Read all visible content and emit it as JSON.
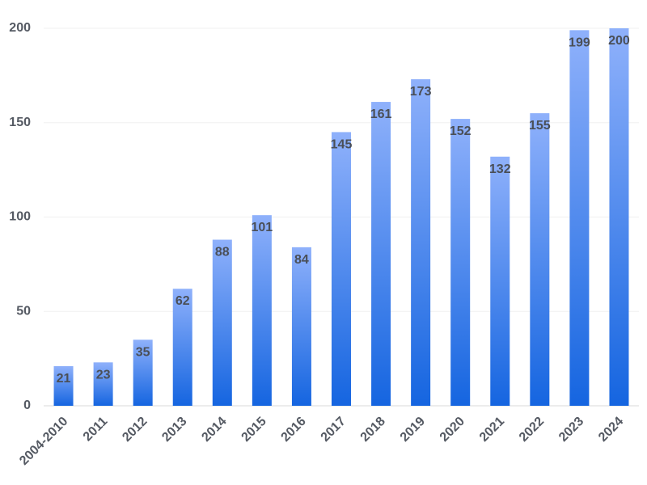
{
  "chart_data": {
    "type": "bar",
    "categories": [
      "2004-2010",
      "2011",
      "2012",
      "2013",
      "2014",
      "2015",
      "2016",
      "2017",
      "2018",
      "2019",
      "2020",
      "2021",
      "2022",
      "2023",
      "2024"
    ],
    "values": [
      21,
      23,
      35,
      62,
      88,
      101,
      84,
      145,
      161,
      173,
      152,
      132,
      155,
      199,
      200
    ],
    "title": "",
    "xlabel": "",
    "ylabel": "",
    "ylim": [
      0,
      200
    ],
    "yticks": [
      0,
      50,
      100,
      150,
      200
    ],
    "grid": true,
    "data_labels": true,
    "colors": {
      "bar_top": "#8fb1fb",
      "bar_bottom": "#1565e0",
      "label": "#4a4f57",
      "tick": "#555a63"
    }
  }
}
